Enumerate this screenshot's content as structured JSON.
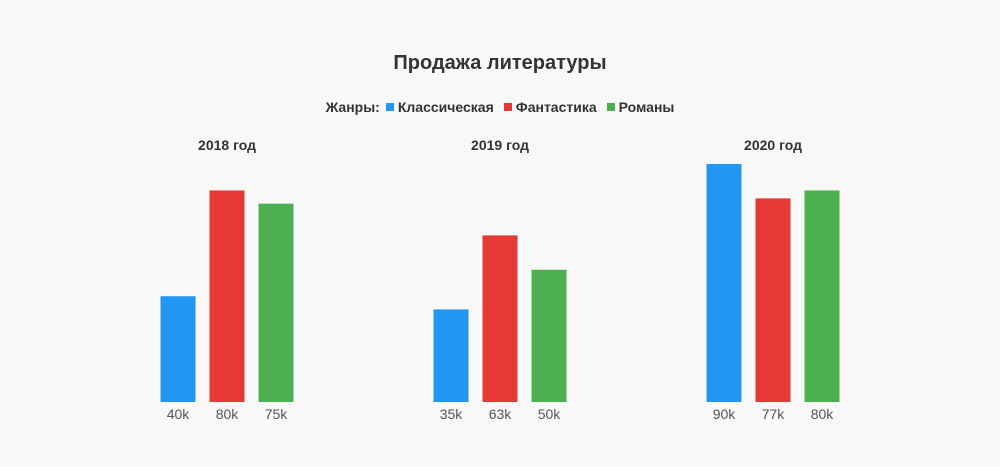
{
  "chart_data": {
    "type": "bar",
    "title": "Продажа литературы",
    "legend_title": "Жанры:",
    "legend_placement": "top-center",
    "grid": false,
    "ylim": [
      0,
      90
    ],
    "series": [
      {
        "name": "Классическая",
        "color": "#2196f3"
      },
      {
        "name": "Фантастика",
        "color": "#e53935"
      },
      {
        "name": "Романы",
        "color": "#4caf50"
      }
    ],
    "panels": [
      {
        "title": "2018 год",
        "values": [
          40,
          80,
          75
        ],
        "labels": [
          "40k",
          "80k",
          "75k"
        ]
      },
      {
        "title": "2019 год",
        "values": [
          35,
          63,
          50
        ],
        "labels": [
          "35k",
          "63k",
          "50k"
        ]
      },
      {
        "title": "2020 год",
        "values": [
          90,
          77,
          80
        ],
        "labels": [
          "90k",
          "77k",
          "80k"
        ]
      }
    ]
  }
}
